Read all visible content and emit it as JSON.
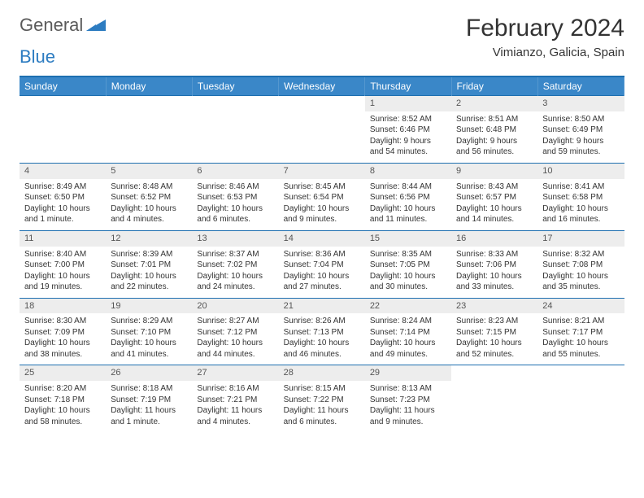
{
  "logo": {
    "text1": "General",
    "text2": "Blue"
  },
  "title": {
    "month": "February 2024",
    "location": "Vimianzo, Galicia, Spain"
  },
  "colors": {
    "headerBg": "#3a87c8",
    "headerBorder": "#1e6fb0",
    "dayBg": "#ededed",
    "logoGray": "#5a5a5a",
    "logoBlue": "#2d7cc1"
  },
  "weekdays": [
    "Sunday",
    "Monday",
    "Tuesday",
    "Wednesday",
    "Thursday",
    "Friday",
    "Saturday"
  ],
  "weeks": [
    {
      "days": [
        null,
        null,
        null,
        null,
        {
          "n": "1",
          "sunrise": "Sunrise: 8:52 AM",
          "sunset": "Sunset: 6:46 PM",
          "day1": "Daylight: 9 hours",
          "day2": "and 54 minutes."
        },
        {
          "n": "2",
          "sunrise": "Sunrise: 8:51 AM",
          "sunset": "Sunset: 6:48 PM",
          "day1": "Daylight: 9 hours",
          "day2": "and 56 minutes."
        },
        {
          "n": "3",
          "sunrise": "Sunrise: 8:50 AM",
          "sunset": "Sunset: 6:49 PM",
          "day1": "Daylight: 9 hours",
          "day2": "and 59 minutes."
        }
      ]
    },
    {
      "days": [
        {
          "n": "4",
          "sunrise": "Sunrise: 8:49 AM",
          "sunset": "Sunset: 6:50 PM",
          "day1": "Daylight: 10 hours",
          "day2": "and 1 minute."
        },
        {
          "n": "5",
          "sunrise": "Sunrise: 8:48 AM",
          "sunset": "Sunset: 6:52 PM",
          "day1": "Daylight: 10 hours",
          "day2": "and 4 minutes."
        },
        {
          "n": "6",
          "sunrise": "Sunrise: 8:46 AM",
          "sunset": "Sunset: 6:53 PM",
          "day1": "Daylight: 10 hours",
          "day2": "and 6 minutes."
        },
        {
          "n": "7",
          "sunrise": "Sunrise: 8:45 AM",
          "sunset": "Sunset: 6:54 PM",
          "day1": "Daylight: 10 hours",
          "day2": "and 9 minutes."
        },
        {
          "n": "8",
          "sunrise": "Sunrise: 8:44 AM",
          "sunset": "Sunset: 6:56 PM",
          "day1": "Daylight: 10 hours",
          "day2": "and 11 minutes."
        },
        {
          "n": "9",
          "sunrise": "Sunrise: 8:43 AM",
          "sunset": "Sunset: 6:57 PM",
          "day1": "Daylight: 10 hours",
          "day2": "and 14 minutes."
        },
        {
          "n": "10",
          "sunrise": "Sunrise: 8:41 AM",
          "sunset": "Sunset: 6:58 PM",
          "day1": "Daylight: 10 hours",
          "day2": "and 16 minutes."
        }
      ]
    },
    {
      "days": [
        {
          "n": "11",
          "sunrise": "Sunrise: 8:40 AM",
          "sunset": "Sunset: 7:00 PM",
          "day1": "Daylight: 10 hours",
          "day2": "and 19 minutes."
        },
        {
          "n": "12",
          "sunrise": "Sunrise: 8:39 AM",
          "sunset": "Sunset: 7:01 PM",
          "day1": "Daylight: 10 hours",
          "day2": "and 22 minutes."
        },
        {
          "n": "13",
          "sunrise": "Sunrise: 8:37 AM",
          "sunset": "Sunset: 7:02 PM",
          "day1": "Daylight: 10 hours",
          "day2": "and 24 minutes."
        },
        {
          "n": "14",
          "sunrise": "Sunrise: 8:36 AM",
          "sunset": "Sunset: 7:04 PM",
          "day1": "Daylight: 10 hours",
          "day2": "and 27 minutes."
        },
        {
          "n": "15",
          "sunrise": "Sunrise: 8:35 AM",
          "sunset": "Sunset: 7:05 PM",
          "day1": "Daylight: 10 hours",
          "day2": "and 30 minutes."
        },
        {
          "n": "16",
          "sunrise": "Sunrise: 8:33 AM",
          "sunset": "Sunset: 7:06 PM",
          "day1": "Daylight: 10 hours",
          "day2": "and 33 minutes."
        },
        {
          "n": "17",
          "sunrise": "Sunrise: 8:32 AM",
          "sunset": "Sunset: 7:08 PM",
          "day1": "Daylight: 10 hours",
          "day2": "and 35 minutes."
        }
      ]
    },
    {
      "days": [
        {
          "n": "18",
          "sunrise": "Sunrise: 8:30 AM",
          "sunset": "Sunset: 7:09 PM",
          "day1": "Daylight: 10 hours",
          "day2": "and 38 minutes."
        },
        {
          "n": "19",
          "sunrise": "Sunrise: 8:29 AM",
          "sunset": "Sunset: 7:10 PM",
          "day1": "Daylight: 10 hours",
          "day2": "and 41 minutes."
        },
        {
          "n": "20",
          "sunrise": "Sunrise: 8:27 AM",
          "sunset": "Sunset: 7:12 PM",
          "day1": "Daylight: 10 hours",
          "day2": "and 44 minutes."
        },
        {
          "n": "21",
          "sunrise": "Sunrise: 8:26 AM",
          "sunset": "Sunset: 7:13 PM",
          "day1": "Daylight: 10 hours",
          "day2": "and 46 minutes."
        },
        {
          "n": "22",
          "sunrise": "Sunrise: 8:24 AM",
          "sunset": "Sunset: 7:14 PM",
          "day1": "Daylight: 10 hours",
          "day2": "and 49 minutes."
        },
        {
          "n": "23",
          "sunrise": "Sunrise: 8:23 AM",
          "sunset": "Sunset: 7:15 PM",
          "day1": "Daylight: 10 hours",
          "day2": "and 52 minutes."
        },
        {
          "n": "24",
          "sunrise": "Sunrise: 8:21 AM",
          "sunset": "Sunset: 7:17 PM",
          "day1": "Daylight: 10 hours",
          "day2": "and 55 minutes."
        }
      ]
    },
    {
      "days": [
        {
          "n": "25",
          "sunrise": "Sunrise: 8:20 AM",
          "sunset": "Sunset: 7:18 PM",
          "day1": "Daylight: 10 hours",
          "day2": "and 58 minutes."
        },
        {
          "n": "26",
          "sunrise": "Sunrise: 8:18 AM",
          "sunset": "Sunset: 7:19 PM",
          "day1": "Daylight: 11 hours",
          "day2": "and 1 minute."
        },
        {
          "n": "27",
          "sunrise": "Sunrise: 8:16 AM",
          "sunset": "Sunset: 7:21 PM",
          "day1": "Daylight: 11 hours",
          "day2": "and 4 minutes."
        },
        {
          "n": "28",
          "sunrise": "Sunrise: 8:15 AM",
          "sunset": "Sunset: 7:22 PM",
          "day1": "Daylight: 11 hours",
          "day2": "and 6 minutes."
        },
        {
          "n": "29",
          "sunrise": "Sunrise: 8:13 AM",
          "sunset": "Sunset: 7:23 PM",
          "day1": "Daylight: 11 hours",
          "day2": "and 9 minutes."
        },
        null,
        null
      ]
    }
  ]
}
